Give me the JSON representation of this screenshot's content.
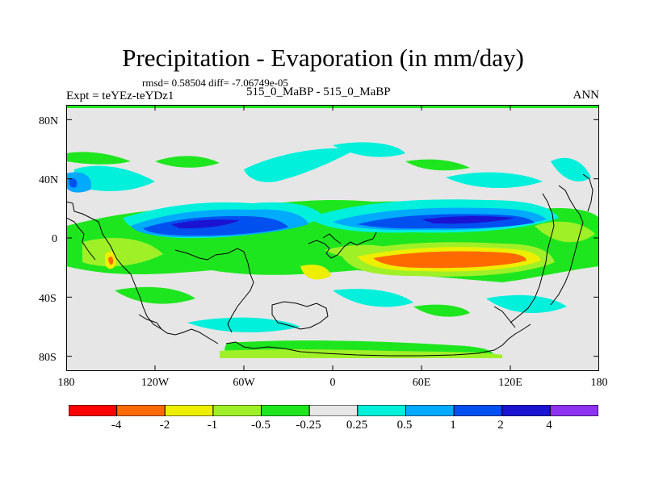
{
  "plot": {
    "title": "Precipitation - Evaporation (in mm/day)",
    "stats": "rmsd= 0.58504 diff= -7.06749e-05",
    "experiment": "Expt = teYEz-teYDz1",
    "case": "515_0_MaBP - 515_0_MaBP",
    "season": "ANN"
  },
  "axes": {
    "lat_ticks": [
      "80N",
      "40N",
      "0",
      "40S",
      "80S"
    ],
    "lat_values": [
      80,
      40,
      0,
      -40,
      -80
    ],
    "lon_ticks": [
      "180",
      "120W",
      "60W",
      "0",
      "60E",
      "120E",
      "180"
    ],
    "lon_values": [
      -180,
      -120,
      -60,
      0,
      60,
      120,
      180
    ],
    "lat_range": [
      -90,
      90
    ],
    "lon_range": [
      -180,
      180
    ]
  },
  "colorbar": {
    "labels": [
      "-4",
      "-2",
      "-1",
      "-0.5",
      "-0.25",
      "0.25",
      "0.5",
      "1",
      "2",
      "4"
    ],
    "colors": [
      "#ff0000",
      "#ff6a00",
      "#eeee00",
      "#a0f028",
      "#1ee61e",
      "#e6e6e6",
      "#00f0dc",
      "#00aaff",
      "#0050f0",
      "#1a14d2",
      "#8c32f0"
    ]
  },
  "colors": {
    "neutral": "#e6e6e6",
    "green": "#1ee61e",
    "lightgreen": "#a0f028",
    "yellow": "#eeee00",
    "orange": "#ff6a00",
    "cyan": "#00f0dc",
    "lightblue": "#00aaff",
    "blue": "#0050f0",
    "darkblue": "#1a14d2",
    "coast": "#000000"
  }
}
